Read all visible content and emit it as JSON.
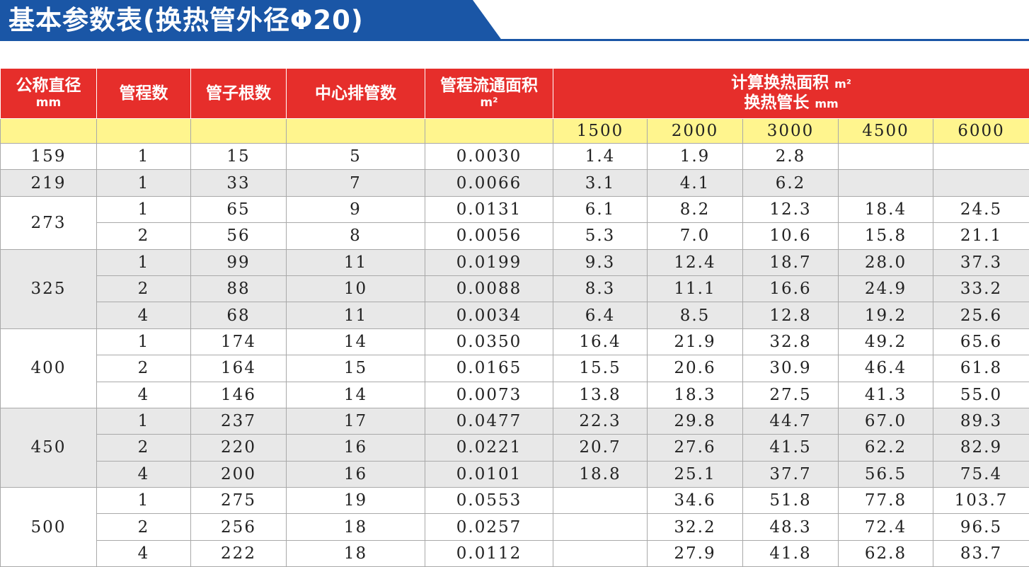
{
  "title": "基本参数表(换热管外径Φ20)",
  "columns": {
    "diameter": "公称直径",
    "diameter_unit": "mm",
    "passes": "管程数",
    "tubes": "管子根数",
    "center_tubes": "中心排管数",
    "flow_area": "管程流通面积",
    "flow_area_unit": "m²",
    "heat_area": "计算换热面积",
    "heat_area_unit": "m²",
    "tube_length": "换热管长",
    "tube_length_unit": "mm",
    "lengths": [
      "1500",
      "2000",
      "3000",
      "4500",
      "6000"
    ]
  },
  "groups": [
    {
      "diameter": "159",
      "rows": [
        {
          "passes": "1",
          "tubes": "15",
          "center": "5",
          "area": "0.0030",
          "heat": [
            "1.4",
            "1.9",
            "2.8",
            "",
            ""
          ]
        }
      ]
    },
    {
      "diameter": "219",
      "rows": [
        {
          "passes": "1",
          "tubes": "33",
          "center": "7",
          "area": "0.0066",
          "heat": [
            "3.1",
            "4.1",
            "6.2",
            "",
            ""
          ]
        }
      ]
    },
    {
      "diameter": "273",
      "rows": [
        {
          "passes": "1",
          "tubes": "65",
          "center": "9",
          "area": "0.0131",
          "heat": [
            "6.1",
            "8.2",
            "12.3",
            "18.4",
            "24.5"
          ]
        },
        {
          "passes": "2",
          "tubes": "56",
          "center": "8",
          "area": "0.0056",
          "heat": [
            "5.3",
            "7.0",
            "10.6",
            "15.8",
            "21.1"
          ]
        }
      ]
    },
    {
      "diameter": "325",
      "rows": [
        {
          "passes": "1",
          "tubes": "99",
          "center": "11",
          "area": "0.0199",
          "heat": [
            "9.3",
            "12.4",
            "18.7",
            "28.0",
            "37.3"
          ]
        },
        {
          "passes": "2",
          "tubes": "88",
          "center": "10",
          "area": "0.0088",
          "heat": [
            "8.3",
            "11.1",
            "16.6",
            "24.9",
            "33.2"
          ]
        },
        {
          "passes": "4",
          "tubes": "68",
          "center": "11",
          "area": "0.0034",
          "heat": [
            "6.4",
            "8.5",
            "12.8",
            "19.2",
            "25.6"
          ]
        }
      ]
    },
    {
      "diameter": "400",
      "rows": [
        {
          "passes": "1",
          "tubes": "174",
          "center": "14",
          "area": "0.0350",
          "heat": [
            "16.4",
            "21.9",
            "32.8",
            "49.2",
            "65.6"
          ]
        },
        {
          "passes": "2",
          "tubes": "164",
          "center": "15",
          "area": "0.0165",
          "heat": [
            "15.5",
            "20.6",
            "30.9",
            "46.4",
            "61.8"
          ]
        },
        {
          "passes": "4",
          "tubes": "146",
          "center": "14",
          "area": "0.0073",
          "heat": [
            "13.8",
            "18.3",
            "27.5",
            "41.3",
            "55.0"
          ]
        }
      ]
    },
    {
      "diameter": "450",
      "rows": [
        {
          "passes": "1",
          "tubes": "237",
          "center": "17",
          "area": "0.0477",
          "heat": [
            "22.3",
            "29.8",
            "44.7",
            "67.0",
            "89.3"
          ]
        },
        {
          "passes": "2",
          "tubes": "220",
          "center": "16",
          "area": "0.0221",
          "heat": [
            "20.7",
            "27.6",
            "41.5",
            "62.2",
            "82.9"
          ]
        },
        {
          "passes": "4",
          "tubes": "200",
          "center": "16",
          "area": "0.0101",
          "heat": [
            "18.8",
            "25.1",
            "37.7",
            "56.5",
            "75.4"
          ]
        }
      ]
    },
    {
      "diameter": "500",
      "rows": [
        {
          "passes": "1",
          "tubes": "275",
          "center": "19",
          "area": "0.0553",
          "heat": [
            "",
            "34.6",
            "51.8",
            "77.8",
            "103.7"
          ]
        },
        {
          "passes": "2",
          "tubes": "256",
          "center": "18",
          "area": "0.0257",
          "heat": [
            "",
            "32.2",
            "48.3",
            "72.4",
            "96.5"
          ]
        },
        {
          "passes": "4",
          "tubes": "222",
          "center": "18",
          "area": "0.0112",
          "heat": [
            "",
            "27.9",
            "41.8",
            "62.8",
            "83.7"
          ]
        }
      ]
    }
  ],
  "colors": {
    "banner": "#1a56a6",
    "header": "#e62e2b",
    "subheader": "#fff58e",
    "stripe": "#e8e8e8"
  }
}
